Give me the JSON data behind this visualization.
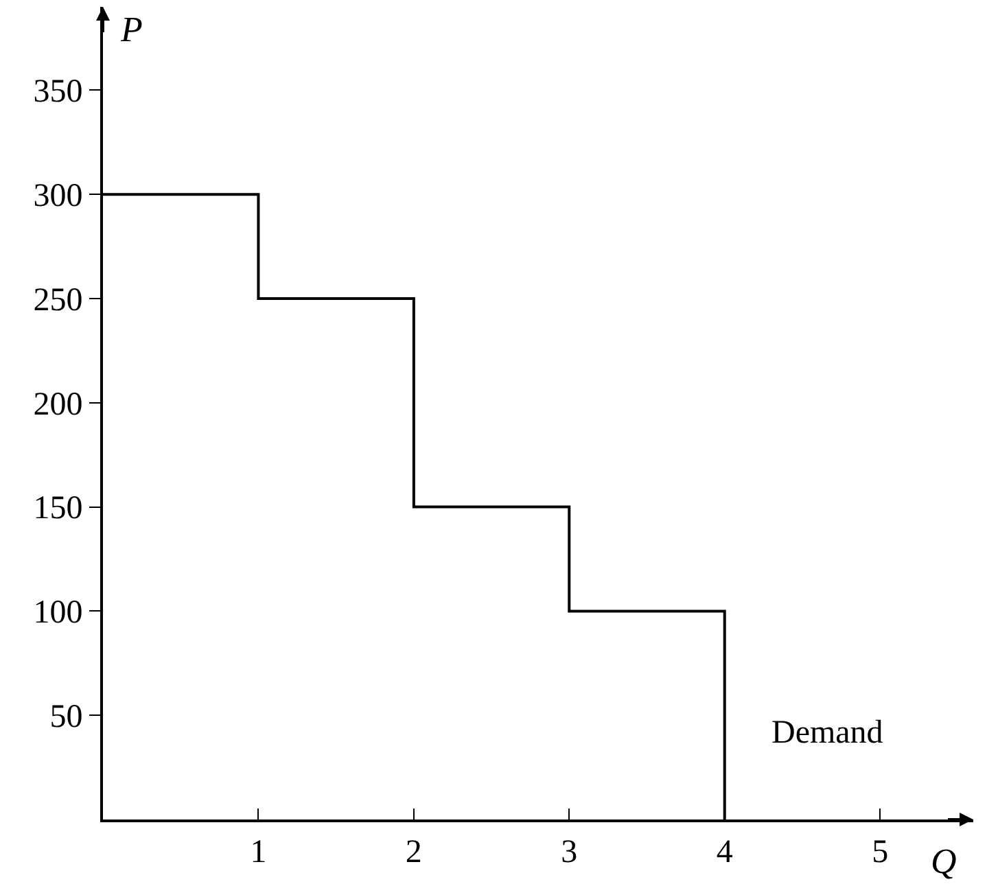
{
  "chart_data": {
    "type": "step",
    "xlabel": "Q",
    "ylabel": "P",
    "x": [
      0,
      1,
      2,
      3,
      4
    ],
    "series": [
      {
        "name": "Demand",
        "color": "#000000",
        "values": [
          300,
          250,
          150,
          100,
          0
        ]
      }
    ],
    "xlim": [
      0,
      5.6
    ],
    "xticks": [
      1,
      2,
      3,
      4,
      5
    ],
    "ylim": [
      0,
      390
    ],
    "yticks": [
      50,
      100,
      150,
      200,
      250,
      300,
      350
    ],
    "legend": false,
    "marker": "none",
    "line_style": "solid"
  }
}
